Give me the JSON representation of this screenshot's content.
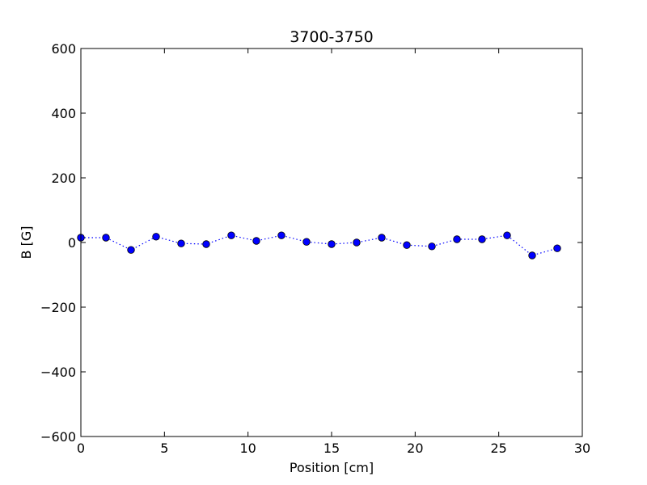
{
  "chart_data": {
    "type": "line",
    "title": "3700-3750",
    "xlabel": "Position [cm]",
    "ylabel": "B [G]",
    "xlim": [
      0,
      30
    ],
    "ylim": [
      -600,
      600
    ],
    "xticks": [
      0,
      5,
      10,
      15,
      20,
      25,
      30
    ],
    "yticks": [
      600,
      400,
      200,
      0,
      -200,
      -400,
      -600
    ],
    "xtick_labels": [
      "0",
      "5",
      "10",
      "15",
      "20",
      "25",
      "30"
    ],
    "ytick_labels": [
      "600",
      "400",
      "200",
      "0",
      "−200",
      "−400",
      "−600"
    ],
    "grid": false,
    "line_style": "dotted",
    "marker": "circle",
    "color": "#0000ff",
    "series": [
      {
        "x": [
          0,
          1.5,
          3,
          4.5,
          6,
          7.5,
          9,
          10.5,
          12,
          13.5,
          15,
          16.5,
          18,
          19.5,
          21,
          22.5,
          24,
          25.5,
          27,
          28.5
        ],
        "y": [
          15,
          15,
          -23,
          18,
          -3,
          -5,
          22,
          5,
          22,
          2,
          -5,
          0,
          15,
          -8,
          -12,
          10,
          10,
          22,
          -40,
          -18
        ]
      }
    ]
  }
}
